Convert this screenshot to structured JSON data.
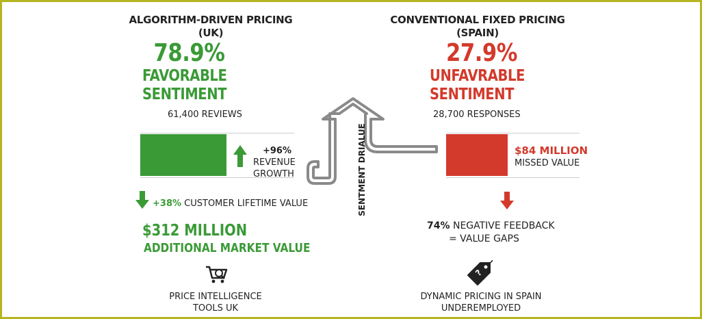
{
  "left": {
    "title_line1": "ALGORITHM-DRIVEN PRICING",
    "title_line2": "(UK)",
    "percent": "78.9%",
    "sentiment_line1": "FAVORABLE",
    "sentiment_line2": "SENTIMENT",
    "reviews": "61,400 REVIEWS",
    "bar_fill_fraction": 0.56,
    "revenue_pct": "+96%",
    "revenue_label_line1": "REVENUE",
    "revenue_label_line2": "GROWTH",
    "clv_pct": "+38%",
    "clv_label": "CUSTOMER LIFETIME VALUE",
    "market_value": "$312 MILLION",
    "market_label": "ADDITIONAL MARKET VALUE",
    "tool_label_line1": "PRICE INTELLIGENCE",
    "tool_label_line2": "TOOLS UK",
    "icon": "cart-magnifier-icon"
  },
  "right": {
    "title_line1": "CONVENTIONAL FIXED PRICING",
    "title_line2": "(SPAIN)",
    "percent": "27.9%",
    "sentiment_line1": "UNFAVRABLE",
    "sentiment_line2": "SENTIMENT",
    "responses": "28,700 RESPONSES",
    "missed_value": "$84 MILLION",
    "missed_label": "MISSED VALUE",
    "negative_pct": "74%",
    "negative_label": "NEGATIVE FEEDBACK",
    "gap_label": "= VALUE GAPS",
    "tool_label_line1": "DYNAMIC PRICING IN SPAIN",
    "tool_label_line2": "UNDEREMPLOYED",
    "icon": "question-price-tag-icon"
  },
  "center": {
    "arrow_label": "SENTMENT DRIALUE"
  },
  "colors": {
    "green": "#3a9a36",
    "red": "#d33a2c",
    "border": "#b5b520",
    "arrow_gray": "#8a8a8a"
  }
}
